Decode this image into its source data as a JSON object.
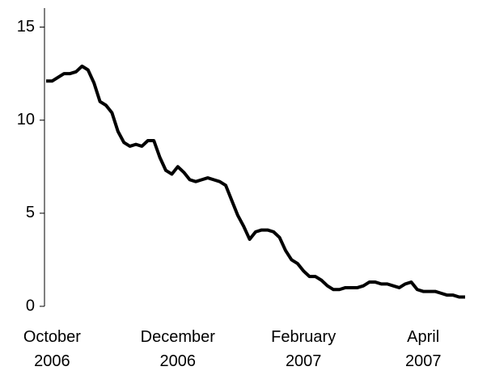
{
  "chart_data": {
    "type": "line",
    "categories": [
      null,
      "October 2006",
      null,
      null,
      null,
      null,
      null,
      null,
      null,
      null,
      null,
      null,
      null,
      null,
      null,
      null,
      null,
      null,
      null,
      null,
      null,
      null,
      "December 2006",
      null,
      null,
      null,
      null,
      null,
      null,
      null,
      null,
      null,
      null,
      null,
      null,
      null,
      null,
      null,
      null,
      null,
      null,
      null,
      null,
      "February 2007",
      null,
      null,
      null,
      null,
      null,
      null,
      null,
      null,
      null,
      null,
      null,
      null,
      null,
      null,
      null,
      null,
      null,
      null,
      null,
      "April 2007",
      null,
      null,
      null,
      null,
      null,
      null,
      null
    ],
    "values": [
      12.1,
      12.1,
      12.3,
      12.5,
      12.5,
      12.6,
      12.9,
      12.7,
      12.0,
      11.0,
      10.8,
      10.4,
      9.4,
      8.8,
      8.6,
      8.7,
      8.6,
      8.9,
      8.9,
      8.0,
      7.3,
      7.1,
      7.5,
      7.2,
      6.8,
      6.7,
      6.8,
      6.9,
      6.8,
      6.7,
      6.5,
      5.7,
      4.9,
      4.3,
      3.6,
      4.0,
      4.1,
      4.1,
      4.0,
      3.7,
      3.0,
      2.5,
      2.3,
      1.9,
      1.6,
      1.6,
      1.4,
      1.1,
      0.9,
      0.9,
      1.0,
      1.0,
      1.0,
      1.1,
      1.3,
      1.3,
      1.2,
      1.2,
      1.1,
      1.0,
      1.2,
      1.3,
      0.9,
      0.8,
      0.8,
      0.8,
      0.7,
      0.6,
      0.6,
      0.5,
      0.5
    ],
    "color": "#000000",
    "ylim": [
      0,
      15.5
    ],
    "yticks": [
      0,
      5,
      10,
      15
    ],
    "grid": false
  }
}
